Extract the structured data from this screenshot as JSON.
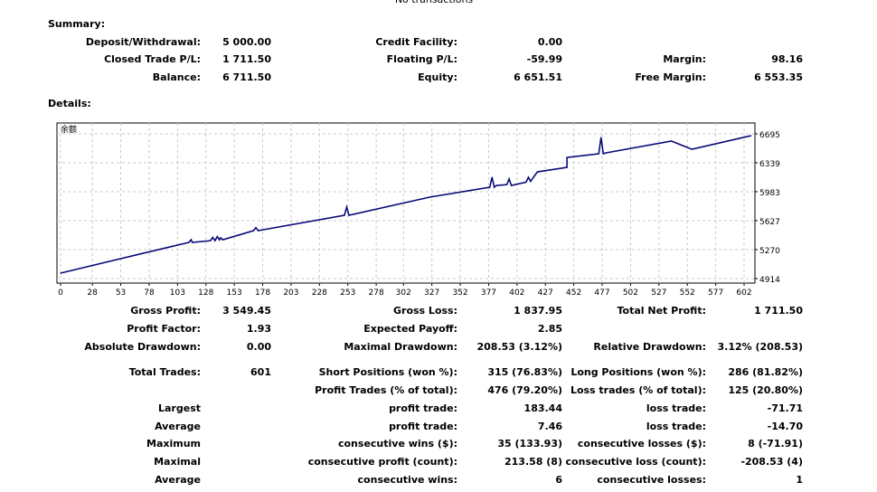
{
  "top_note": "No transactions",
  "summary": {
    "title": "Summary:",
    "rows": [
      [
        [
          "Deposit/Withdrawal:",
          "5 000.00"
        ],
        [
          "Credit Facility:",
          "0.00"
        ],
        [
          "",
          ""
        ]
      ],
      [
        [
          "Closed Trade P/L:",
          "1 711.50"
        ],
        [
          "Floating P/L:",
          "-59.99"
        ],
        [
          "Margin:",
          "98.16"
        ]
      ],
      [
        [
          "Balance:",
          "6 711.50"
        ],
        [
          "Equity:",
          "6 651.51"
        ],
        [
          "Free Margin:",
          "6 553.35"
        ]
      ]
    ]
  },
  "details": {
    "title": "Details:"
  },
  "chart_data": {
    "type": "line",
    "legend": "余额",
    "xlim": [
      0,
      608
    ],
    "ylim": [
      4914,
      6695
    ],
    "x_ticks": [
      "0",
      "28",
      "53",
      "78",
      "103",
      "128",
      "153",
      "178",
      "203",
      "228",
      "253",
      "278",
      "302",
      "327",
      "352",
      "377",
      "402",
      "427",
      "452",
      "477",
      "502",
      "527",
      "552",
      "577",
      "602"
    ],
    "y_ticks": [
      "6695",
      "6339",
      "5983",
      "5627",
      "5270",
      "4914"
    ],
    "grid": true,
    "line_color": "#0a0a78",
    "series": [
      {
        "x": [
          0,
          66,
          113,
          115,
          116,
          132,
          134,
          136,
          138,
          140,
          141,
          143,
          170,
          172,
          174,
          250,
          252,
          254,
          325,
          378,
          380,
          382,
          384,
          393,
          395,
          397,
          410,
          412,
          414,
          418,
          420,
          446,
          446,
          474,
          476,
          478,
          480,
          538,
          556,
          608
        ],
        "y": [
          4981,
          5203,
          5359,
          5392,
          5359,
          5380,
          5420,
          5380,
          5430,
          5390,
          5415,
          5392,
          5504,
          5540,
          5504,
          5693,
          5793,
          5693,
          5916,
          6038,
          6160,
          6038,
          6060,
          6070,
          6140,
          6060,
          6100,
          6160,
          6110,
          6190,
          6227,
          6283,
          6405,
          6450,
          6650,
          6450,
          6460,
          6606,
          6506,
          6672
        ]
      }
    ]
  },
  "stats": [
    {
      "cells": [
        [
          "Gross Profit:",
          "3 549.45"
        ],
        [
          "Gross Loss:",
          "1 837.95"
        ],
        [
          "Total Net Profit:",
          "1 711.50"
        ]
      ]
    },
    {
      "cells": [
        [
          "Profit Factor:",
          "1.93"
        ],
        [
          "Expected Payoff:",
          "2.85"
        ],
        [
          "",
          ""
        ]
      ]
    },
    {
      "cells": [
        [
          "Absolute Drawdown:",
          "0.00"
        ],
        [
          "Maximal Drawdown:",
          "208.53 (3.12%)"
        ],
        [
          "Relative Drawdown:",
          "3.12% (208.53)"
        ]
      ]
    },
    {
      "cells": [
        [
          "Total Trades:",
          "601"
        ],
        [
          "Short Positions (won %):",
          "315 (76.83%)"
        ],
        [
          "Long Positions (won %):",
          "286 (81.82%)"
        ]
      ]
    },
    {
      "cells": [
        [
          "",
          ""
        ],
        [
          "Profit Trades (% of total):",
          "476 (79.20%)"
        ],
        [
          "Loss trades (% of total):",
          "125 (20.80%)"
        ]
      ]
    },
    {
      "cells": [
        [
          "Largest",
          ""
        ],
        [
          "profit trade:",
          "183.44"
        ],
        [
          "loss trade:",
          "-71.71"
        ]
      ]
    },
    {
      "cells": [
        [
          "Average",
          ""
        ],
        [
          "profit trade:",
          "7.46"
        ],
        [
          "loss trade:",
          "-14.70"
        ]
      ]
    },
    {
      "cells": [
        [
          "Maximum",
          ""
        ],
        [
          "consecutive wins ($):",
          "35 (133.93)"
        ],
        [
          "consecutive losses ($):",
          "8 (-71.91)"
        ]
      ]
    },
    {
      "cells": [
        [
          "Maximal",
          ""
        ],
        [
          "consecutive profit (count):",
          "213.58 (8)"
        ],
        [
          "consecutive loss (count):",
          "-208.53 (4)"
        ]
      ]
    },
    {
      "cells": [
        [
          "Average",
          ""
        ],
        [
          "consecutive wins:",
          "6"
        ],
        [
          "consecutive losses:",
          "1"
        ]
      ]
    }
  ]
}
